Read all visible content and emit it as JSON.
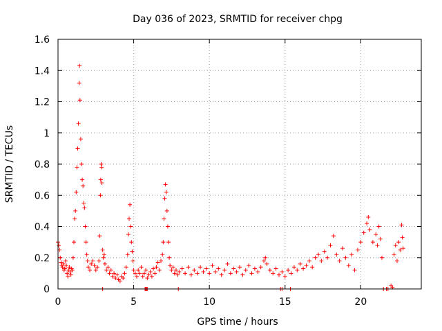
{
  "chart_data": {
    "type": "scatter",
    "title": "Day 036 of 2023, SRMTID for receiver chpg",
    "xlabel": "GPS time / hours",
    "ylabel": "SRMTID / TECUs",
    "xlim": [
      0,
      24
    ],
    "ylim": [
      0,
      1.6
    ],
    "xticks": [
      0,
      5,
      10,
      15,
      20
    ],
    "xtick_labels": [
      "0",
      "5",
      "10",
      "15",
      "20"
    ],
    "yticks": [
      0,
      0.2,
      0.4,
      0.6,
      0.8,
      1.0,
      1.2,
      1.4,
      1.6
    ],
    "ytick_labels": [
      "0",
      "0.2",
      "0.4",
      "0.6",
      "0.8",
      "1",
      "1.2",
      "1.4",
      "1.6"
    ],
    "grid": true,
    "marker": "+",
    "series": [
      {
        "name": "SRMTID",
        "color": "#ff0000",
        "points": [
          [
            0.0,
            0.3
          ],
          [
            0.05,
            0.28
          ],
          [
            0.1,
            0.25
          ],
          [
            0.15,
            0.2
          ],
          [
            0.2,
            0.17
          ],
          [
            0.25,
            0.15
          ],
          [
            0.3,
            0.14
          ],
          [
            0.35,
            0.16
          ],
          [
            0.4,
            0.12
          ],
          [
            0.45,
            0.13
          ],
          [
            0.5,
            0.18
          ],
          [
            0.55,
            0.15
          ],
          [
            0.6,
            0.1
          ],
          [
            0.65,
            0.08
          ],
          [
            0.7,
            0.12
          ],
          [
            0.75,
            0.14
          ],
          [
            0.8,
            0.11
          ],
          [
            0.85,
            0.09
          ],
          [
            0.9,
            0.13
          ],
          [
            0.95,
            0.12
          ],
          [
            1.0,
            0.2
          ],
          [
            1.05,
            0.3
          ],
          [
            1.1,
            0.45
          ],
          [
            1.15,
            0.5
          ],
          [
            1.2,
            0.62
          ],
          [
            1.25,
            0.78
          ],
          [
            1.3,
            0.9
          ],
          [
            1.35,
            1.06
          ],
          [
            1.4,
            1.32
          ],
          [
            1.42,
            1.43
          ],
          [
            1.45,
            1.21
          ],
          [
            1.5,
            0.96
          ],
          [
            1.55,
            0.8
          ],
          [
            1.6,
            0.7
          ],
          [
            1.65,
            0.66
          ],
          [
            1.7,
            0.55
          ],
          [
            1.75,
            0.52
          ],
          [
            1.8,
            0.4
          ],
          [
            1.85,
            0.3
          ],
          [
            1.9,
            0.22
          ],
          [
            1.95,
            0.18
          ],
          [
            2.0,
            0.14
          ],
          [
            2.1,
            0.12
          ],
          [
            2.2,
            0.16
          ],
          [
            2.3,
            0.18
          ],
          [
            2.4,
            0.15
          ],
          [
            2.5,
            0.12
          ],
          [
            2.6,
            0.14
          ],
          [
            2.7,
            0.18
          ],
          [
            2.75,
            0.34
          ],
          [
            2.8,
            0.6
          ],
          [
            2.82,
            0.7
          ],
          [
            2.85,
            0.8
          ],
          [
            2.88,
            0.78
          ],
          [
            2.9,
            0.68
          ],
          [
            2.95,
            0.25
          ],
          [
            3.0,
            0.2
          ],
          [
            3.05,
            0.22
          ],
          [
            3.1,
            0.16
          ],
          [
            3.2,
            0.12
          ],
          [
            3.3,
            0.14
          ],
          [
            3.4,
            0.1
          ],
          [
            3.5,
            0.12
          ],
          [
            3.6,
            0.08
          ],
          [
            3.7,
            0.1
          ],
          [
            3.8,
            0.07
          ],
          [
            3.9,
            0.09
          ],
          [
            4.0,
            0.06
          ],
          [
            4.1,
            0.05
          ],
          [
            4.2,
            0.08
          ],
          [
            4.3,
            0.07
          ],
          [
            4.4,
            0.1
          ],
          [
            4.5,
            0.14
          ],
          [
            4.6,
            0.22
          ],
          [
            4.65,
            0.35
          ],
          [
            4.7,
            0.45
          ],
          [
            4.75,
            0.54
          ],
          [
            4.8,
            0.4
          ],
          [
            4.85,
            0.3
          ],
          [
            4.9,
            0.24
          ],
          [
            4.95,
            0.18
          ],
          [
            5.0,
            0.12
          ],
          [
            5.1,
            0.1
          ],
          [
            5.2,
            0.08
          ],
          [
            5.3,
            0.12
          ],
          [
            5.4,
            0.1
          ],
          [
            5.5,
            0.14
          ],
          [
            5.6,
            0.08
          ],
          [
            5.7,
            0.1
          ],
          [
            5.8,
            0.12
          ],
          [
            5.9,
            0.07
          ],
          [
            6.0,
            0.09
          ],
          [
            6.1,
            0.11
          ],
          [
            6.2,
            0.08
          ],
          [
            6.3,
            0.13
          ],
          [
            6.4,
            0.1
          ],
          [
            6.5,
            0.14
          ],
          [
            6.6,
            0.17
          ],
          [
            6.7,
            0.12
          ],
          [
            6.8,
            0.18
          ],
          [
            6.9,
            0.22
          ],
          [
            6.95,
            0.3
          ],
          [
            7.0,
            0.45
          ],
          [
            7.05,
            0.58
          ],
          [
            7.1,
            0.67
          ],
          [
            7.15,
            0.62
          ],
          [
            7.2,
            0.5
          ],
          [
            7.25,
            0.4
          ],
          [
            7.3,
            0.3
          ],
          [
            7.35,
            0.2
          ],
          [
            7.4,
            0.15
          ],
          [
            7.5,
            0.12
          ],
          [
            7.6,
            0.14
          ],
          [
            7.7,
            0.1
          ],
          [
            7.8,
            0.12
          ],
          [
            7.9,
            0.09
          ],
          [
            8.0,
            0.11
          ],
          [
            8.2,
            0.13
          ],
          [
            8.4,
            0.1
          ],
          [
            8.6,
            0.14
          ],
          [
            8.8,
            0.09
          ],
          [
            9.0,
            0.12
          ],
          [
            9.2,
            0.1
          ],
          [
            9.4,
            0.14
          ],
          [
            9.6,
            0.11
          ],
          [
            9.8,
            0.13
          ],
          [
            10.0,
            0.1
          ],
          [
            10.2,
            0.15
          ],
          [
            10.4,
            0.11
          ],
          [
            10.6,
            0.13
          ],
          [
            10.8,
            0.09
          ],
          [
            11.0,
            0.12
          ],
          [
            11.2,
            0.16
          ],
          [
            11.4,
            0.1
          ],
          [
            11.6,
            0.13
          ],
          [
            11.8,
            0.11
          ],
          [
            12.0,
            0.14
          ],
          [
            12.2,
            0.09
          ],
          [
            12.4,
            0.12
          ],
          [
            12.6,
            0.15
          ],
          [
            12.8,
            0.1
          ],
          [
            13.0,
            0.13
          ],
          [
            13.2,
            0.11
          ],
          [
            13.4,
            0.14
          ],
          [
            13.6,
            0.18
          ],
          [
            13.7,
            0.2
          ],
          [
            13.8,
            0.16
          ],
          [
            14.0,
            0.12
          ],
          [
            14.2,
            0.1
          ],
          [
            14.4,
            0.13
          ],
          [
            14.6,
            0.09
          ],
          [
            14.8,
            0.11
          ],
          [
            15.0,
            0.08
          ],
          [
            15.2,
            0.12
          ],
          [
            15.4,
            0.1
          ],
          [
            15.6,
            0.14
          ],
          [
            15.8,
            0.12
          ],
          [
            16.0,
            0.16
          ],
          [
            16.2,
            0.13
          ],
          [
            16.4,
            0.15
          ],
          [
            16.6,
            0.18
          ],
          [
            16.8,
            0.14
          ],
          [
            17.0,
            0.2
          ],
          [
            17.2,
            0.22
          ],
          [
            17.4,
            0.18
          ],
          [
            17.6,
            0.24
          ],
          [
            17.8,
            0.2
          ],
          [
            18.0,
            0.28
          ],
          [
            18.2,
            0.34
          ],
          [
            18.4,
            0.22
          ],
          [
            18.6,
            0.18
          ],
          [
            18.8,
            0.26
          ],
          [
            19.0,
            0.2
          ],
          [
            19.2,
            0.15
          ],
          [
            19.4,
            0.22
          ],
          [
            19.6,
            0.12
          ],
          [
            19.8,
            0.25
          ],
          [
            20.0,
            0.3
          ],
          [
            20.2,
            0.36
          ],
          [
            20.4,
            0.42
          ],
          [
            20.5,
            0.46
          ],
          [
            20.6,
            0.38
          ],
          [
            20.8,
            0.3
          ],
          [
            21.0,
            0.35
          ],
          [
            21.1,
            0.28
          ],
          [
            21.2,
            0.4
          ],
          [
            21.3,
            0.32
          ],
          [
            21.4,
            0.2
          ],
          [
            21.5,
            0.0
          ],
          [
            21.7,
            0.0
          ],
          [
            21.8,
            0.0
          ],
          [
            22.0,
            0.02
          ],
          [
            22.1,
            0.01
          ],
          [
            22.2,
            0.22
          ],
          [
            22.3,
            0.28
          ],
          [
            22.4,
            0.18
          ],
          [
            22.5,
            0.3
          ],
          [
            22.6,
            0.25
          ],
          [
            22.7,
            0.41
          ],
          [
            22.75,
            0.33
          ],
          [
            22.8,
            0.26
          ],
          [
            2.95,
            0.0
          ],
          [
            5.75,
            0.0
          ],
          [
            5.8,
            0.0
          ],
          [
            5.85,
            0.0
          ],
          [
            5.9,
            0.0
          ],
          [
            7.95,
            0.0
          ],
          [
            14.7,
            0.0
          ],
          [
            14.8,
            0.0
          ],
          [
            15.35,
            0.0
          ]
        ]
      }
    ]
  }
}
